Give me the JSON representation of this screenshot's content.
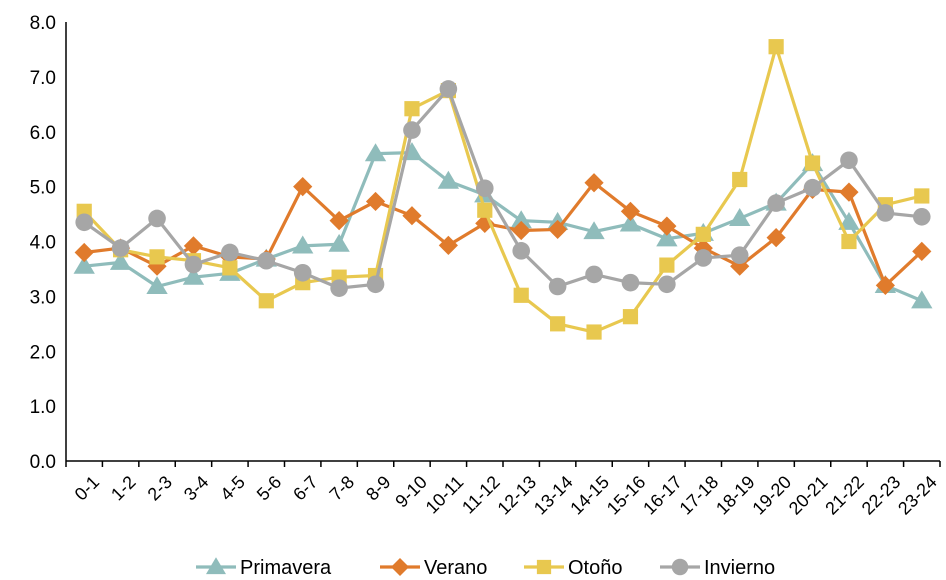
{
  "chart_data": {
    "type": "line",
    "title": "",
    "xlabel": "",
    "ylabel": "",
    "ylim": [
      0,
      8
    ],
    "y_ticks": [
      "0.0",
      "1.0",
      "2.0",
      "3.0",
      "4.0",
      "5.0",
      "6.0",
      "7.0",
      "8.0"
    ],
    "grid": false,
    "legend_position": "bottom",
    "categories": [
      "0-1",
      "1-2",
      "2-3",
      "3-4",
      "4-5",
      "5-6",
      "6-7",
      "7-8",
      "8-9",
      "9-10",
      "10-11",
      "11-12",
      "12-13",
      "13-14",
      "14-15",
      "15-16",
      "16-17",
      "17-18",
      "18-19",
      "19-20",
      "20-21",
      "21-22",
      "22-23",
      "23-24"
    ],
    "series": [
      {
        "name": "Primavera",
        "color": "#8fbcbb",
        "marker": "triangle",
        "values": [
          3.55,
          3.62,
          3.18,
          3.35,
          3.42,
          3.68,
          3.92,
          3.95,
          5.6,
          5.62,
          5.1,
          4.85,
          4.38,
          4.35,
          4.18,
          4.32,
          4.05,
          4.15,
          4.42,
          4.7,
          5.42,
          4.35,
          3.2,
          2.92
        ]
      },
      {
        "name": "Verano",
        "color": "#e07b2c",
        "marker": "diamond",
        "values": [
          3.8,
          3.88,
          3.55,
          3.92,
          3.72,
          3.68,
          5.0,
          4.38,
          4.73,
          4.47,
          3.93,
          4.33,
          4.2,
          4.22,
          5.07,
          4.55,
          4.28,
          3.88,
          3.55,
          4.07,
          4.95,
          4.9,
          3.2,
          3.82
        ]
      },
      {
        "name": "Otoño",
        "color": "#e8c84f",
        "marker": "square",
        "values": [
          4.55,
          3.85,
          3.72,
          3.65,
          3.52,
          2.92,
          3.25,
          3.35,
          3.38,
          6.42,
          6.75,
          4.57,
          3.02,
          2.5,
          2.35,
          2.63,
          3.57,
          4.13,
          5.13,
          7.55,
          5.43,
          4.0,
          4.67,
          4.83
        ]
      },
      {
        "name": "Invierno",
        "color": "#a6a6a6",
        "marker": "circle",
        "values": [
          4.35,
          3.88,
          4.42,
          3.58,
          3.8,
          3.65,
          3.43,
          3.15,
          3.22,
          6.03,
          6.78,
          4.97,
          3.83,
          3.18,
          3.4,
          3.25,
          3.22,
          3.7,
          3.75,
          4.7,
          4.98,
          5.48,
          4.52,
          4.45
        ]
      }
    ]
  }
}
